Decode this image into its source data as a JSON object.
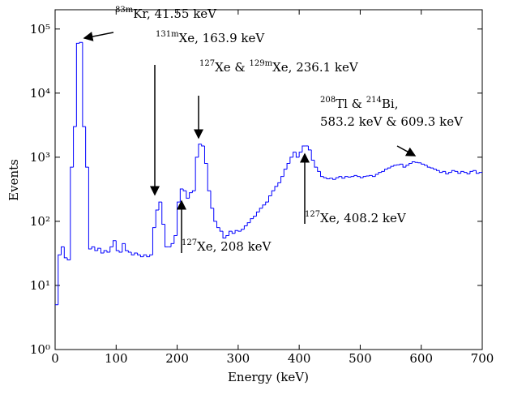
{
  "chart_data": {
    "type": "histogram",
    "xlabel": "Energy (keV)",
    "ylabel": "Events",
    "color": "#0000ff",
    "log_y": true,
    "bins": [
      0,
      5,
      10,
      15,
      20,
      25,
      30,
      35,
      40,
      45,
      50,
      55,
      60,
      65,
      70,
      75,
      80,
      85,
      90,
      95,
      100,
      105,
      110,
      115,
      120,
      125,
      130,
      135,
      140,
      145,
      150,
      155,
      160,
      165,
      170,
      175,
      180,
      185,
      190,
      195,
      200,
      205,
      210,
      215,
      220,
      225,
      230,
      235,
      240,
      245,
      250,
      255,
      260,
      265,
      270,
      275,
      280,
      285,
      290,
      295,
      300,
      305,
      310,
      315,
      320,
      325,
      330,
      335,
      340,
      345,
      350,
      355,
      360,
      365,
      370,
      375,
      380,
      385,
      390,
      395,
      400,
      405,
      410,
      415,
      420,
      425,
      430,
      435,
      440,
      445,
      450,
      455,
      460,
      465,
      470,
      475,
      480,
      485,
      490,
      495,
      500,
      505,
      510,
      515,
      520,
      525,
      530,
      535,
      540,
      545,
      550,
      555,
      560,
      565,
      570,
      575,
      580,
      585,
      590,
      595,
      600,
      605,
      610,
      615,
      620,
      625,
      630,
      635,
      640,
      645,
      650,
      655,
      660,
      665,
      670,
      675,
      680,
      685,
      690,
      695,
      700
    ],
    "counts": [
      5,
      30,
      40,
      27,
      25,
      700,
      3000,
      60000,
      62000,
      3000,
      700,
      37,
      40,
      35,
      38,
      32,
      35,
      33,
      40,
      50,
      35,
      33,
      45,
      35,
      33,
      30,
      32,
      30,
      28,
      30,
      28,
      30,
      80,
      150,
      200,
      90,
      40,
      40,
      45,
      60,
      200,
      320,
      300,
      230,
      280,
      300,
      1000,
      1600,
      1500,
      800,
      300,
      160,
      100,
      80,
      70,
      55,
      60,
      70,
      65,
      72,
      70,
      75,
      85,
      95,
      110,
      120,
      140,
      160,
      180,
      200,
      250,
      300,
      350,
      400,
      500,
      650,
      800,
      1000,
      1200,
      1000,
      1200,
      1500,
      1500,
      1300,
      900,
      700,
      600,
      500,
      480,
      460,
      470,
      450,
      480,
      500,
      470,
      500,
      490,
      500,
      520,
      500,
      480,
      500,
      510,
      520,
      500,
      540,
      580,
      600,
      650,
      680,
      720,
      750,
      760,
      780,
      700,
      750,
      800,
      850,
      830,
      820,
      780,
      750,
      700,
      680,
      650,
      620,
      580,
      600,
      550,
      580,
      620,
      600,
      560,
      600,
      580,
      550,
      600,
      620,
      560,
      580
    ],
    "xlim": [
      0,
      700
    ],
    "xticks": [
      0,
      100,
      200,
      300,
      400,
      500,
      600,
      700
    ],
    "ylim": [
      1,
      200000
    ],
    "yticks": [
      {
        "value": 1,
        "label": "10⁰"
      },
      {
        "value": 10,
        "label": "10¹"
      },
      {
        "value": 100,
        "label": "10²"
      },
      {
        "value": 1000,
        "label": "10³"
      },
      {
        "value": 10000,
        "label": "10⁴"
      },
      {
        "value": 100000,
        "label": "10⁵"
      }
    ],
    "annotations": [
      {
        "lines": [
          [
            {
              "sup": "83m"
            },
            {
              "text": "Kr, 41.55 keV"
            }
          ]
        ]
      },
      {
        "lines": [
          [
            {
              "sup": "131m"
            },
            {
              "text": "Xe, 163.9 keV"
            }
          ]
        ]
      },
      {
        "lines": [
          [
            {
              "sup": "127"
            },
            {
              "text": "Xe & "
            },
            {
              "sup": "129m"
            },
            {
              "text": "Xe, 236.1 keV"
            }
          ]
        ]
      },
      {
        "lines": [
          [
            {
              "sup": "208"
            },
            {
              "text": "Tl & "
            },
            {
              "sup": "214"
            },
            {
              "text": "Bi,"
            }
          ],
          [
            {
              "text": "583.2 keV & 609.3 keV"
            }
          ]
        ]
      },
      {
        "lines": [
          [
            {
              "sup": "127"
            },
            {
              "text": "Xe, 408.2 keV"
            }
          ]
        ]
      },
      {
        "lines": [
          [
            {
              "sup": "127"
            },
            {
              "text": "Xe, 208 keV"
            }
          ]
        ]
      }
    ]
  }
}
